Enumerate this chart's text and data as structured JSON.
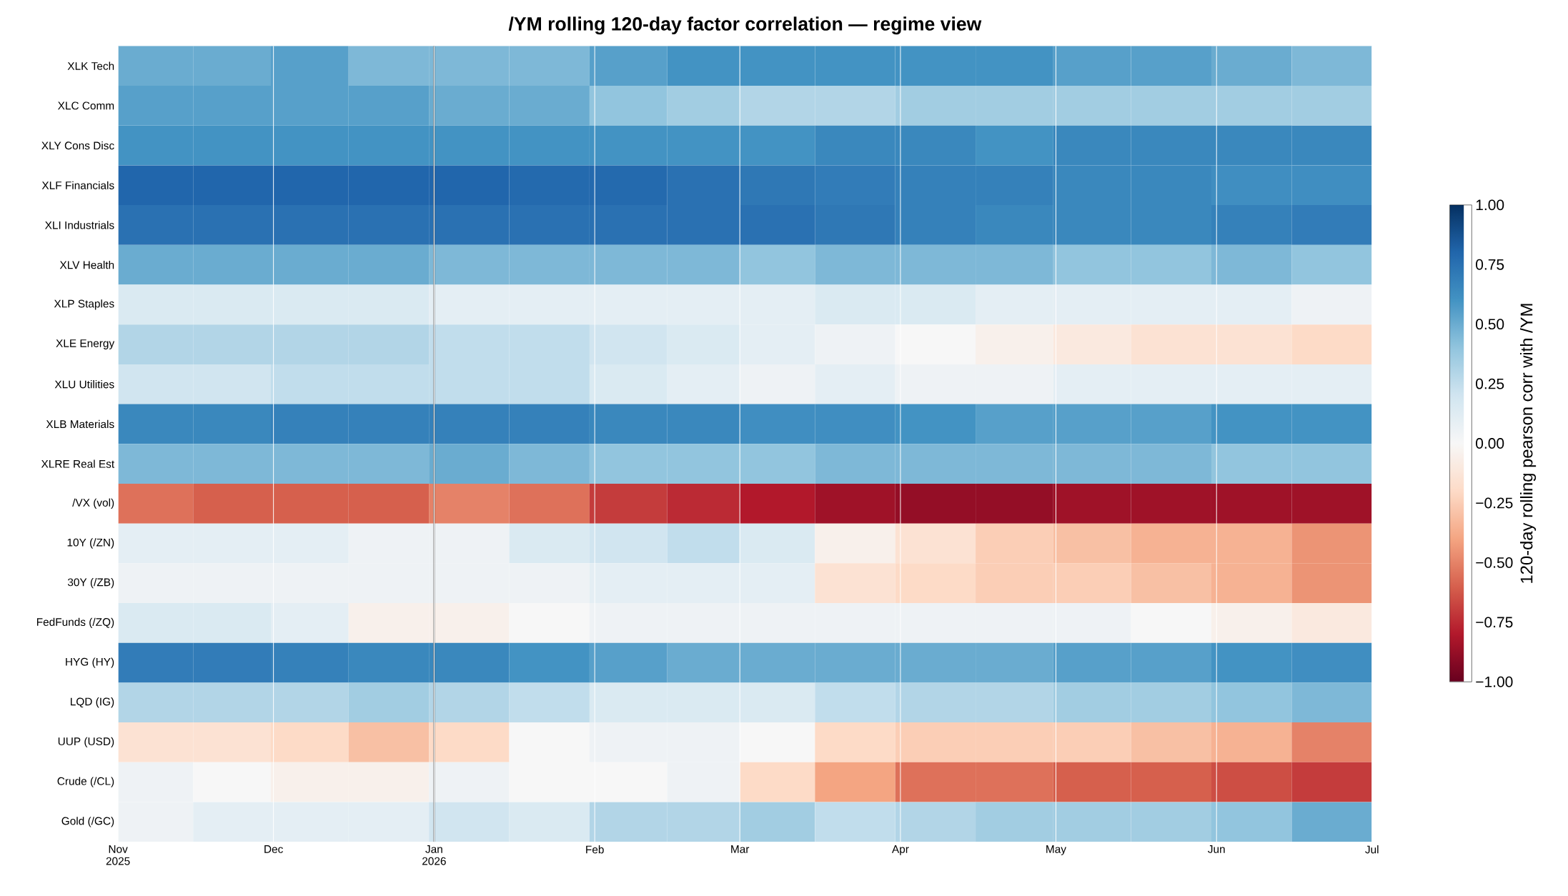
{
  "chart_data": {
    "type": "heatmap",
    "title": "/YM rolling 120-day factor correlation — regime view",
    "clabel": "120-day rolling pearson corr with /YM",
    "x": [
      "2025-11-08",
      "2025-11-23",
      "2025-12-08",
      "2025-12-23",
      "2026-01-08",
      "2026-01-23",
      "2026-02-08",
      "2026-02-22",
      "2026-03-08",
      "2026-03-23",
      "2026-04-08",
      "2026-04-23",
      "2026-05-08",
      "2026-05-23",
      "2026-06-08",
      "2026-06-23"
    ],
    "xlim": [
      "2025-11-01",
      "2026-07-01"
    ],
    "xticks": [
      {
        "value": "2025-11-01",
        "label": "Nov 2025"
      },
      {
        "value": "2025-12-01",
        "label": "Dec"
      },
      {
        "value": "2026-01-01",
        "label": "Jan 2026"
      },
      {
        "value": "2026-02-01",
        "label": "Feb"
      },
      {
        "value": "2026-03-01",
        "label": "Mar"
      },
      {
        "value": "2026-04-01",
        "label": "Apr"
      },
      {
        "value": "2026-05-01",
        "label": "May"
      },
      {
        "value": "2026-06-01",
        "label": "Jun"
      },
      {
        "value": "2026-07-01",
        "label": "Jul"
      }
    ],
    "y_categories": [
      "XLK Tech",
      "XLC Comm",
      "XLY Cons Disc",
      "XLF Financials",
      "XLI Industrials",
      "XLV Health",
      "XLP Staples",
      "XLE Energy",
      "XLU Utilities",
      "XLB Materials",
      "XLRE Real Est",
      "/VX (vol)",
      "10Y (/ZN)",
      "30Y (/ZB)",
      "FedFunds (/ZQ)",
      "HYG (HY)",
      "LQD (IG)",
      "UUP (USD)",
      "Crude (/CL)",
      "Gold (/GC)"
    ],
    "cells": [
      [
        0.5,
        0.5,
        0.55,
        0.45,
        0.45,
        0.45,
        0.55,
        0.6,
        0.6,
        0.6,
        0.6,
        0.6,
        0.55,
        0.55,
        0.5,
        0.45
      ],
      [
        0.55,
        0.55,
        0.55,
        0.55,
        0.5,
        0.5,
        0.4,
        0.35,
        0.3,
        0.3,
        0.35,
        0.35,
        0.35,
        0.35,
        0.35,
        0.35
      ],
      [
        0.6,
        0.6,
        0.6,
        0.6,
        0.6,
        0.6,
        0.6,
        0.6,
        0.6,
        0.65,
        0.65,
        0.6,
        0.65,
        0.65,
        0.65,
        0.65
      ],
      [
        0.8,
        0.8,
        0.8,
        0.8,
        0.8,
        0.78,
        0.78,
        0.75,
        0.72,
        0.7,
        0.68,
        0.68,
        0.65,
        0.65,
        0.62,
        0.62
      ],
      [
        0.75,
        0.75,
        0.75,
        0.75,
        0.75,
        0.75,
        0.75,
        0.75,
        0.75,
        0.72,
        0.68,
        0.65,
        0.65,
        0.65,
        0.68,
        0.7
      ],
      [
        0.5,
        0.5,
        0.5,
        0.5,
        0.45,
        0.45,
        0.45,
        0.45,
        0.4,
        0.45,
        0.45,
        0.45,
        0.4,
        0.4,
        0.45,
        0.4
      ],
      [
        0.15,
        0.15,
        0.15,
        0.15,
        0.1,
        0.1,
        0.1,
        0.1,
        0.1,
        0.15,
        0.15,
        0.1,
        0.1,
        0.1,
        0.1,
        0.05
      ],
      [
        0.3,
        0.3,
        0.3,
        0.3,
        0.25,
        0.25,
        0.2,
        0.15,
        0.1,
        0.05,
        0,
        -0.05,
        -0.1,
        -0.15,
        -0.15,
        -0.2
      ],
      [
        0.2,
        0.2,
        0.25,
        0.25,
        0.25,
        0.25,
        0.15,
        0.1,
        0.05,
        0.1,
        0.05,
        0.05,
        0.1,
        0.1,
        0.1,
        0.1
      ],
      [
        0.65,
        0.65,
        0.68,
        0.68,
        0.68,
        0.68,
        0.65,
        0.65,
        0.62,
        0.62,
        0.6,
        0.55,
        0.55,
        0.55,
        0.6,
        0.6
      ],
      [
        0.45,
        0.45,
        0.45,
        0.45,
        0.5,
        0.45,
        0.4,
        0.4,
        0.4,
        0.45,
        0.45,
        0.45,
        0.45,
        0.45,
        0.4,
        0.4
      ],
      [
        -0.55,
        -0.6,
        -0.6,
        -0.6,
        -0.5,
        -0.55,
        -0.7,
        -0.75,
        -0.8,
        -0.85,
        -0.88,
        -0.88,
        -0.85,
        -0.85,
        -0.85,
        -0.85
      ],
      [
        0.1,
        0.1,
        0.1,
        0.05,
        0.05,
        0.15,
        0.2,
        0.25,
        0.15,
        -0.05,
        -0.15,
        -0.25,
        -0.3,
        -0.35,
        -0.35,
        -0.45
      ],
      [
        0.05,
        0.05,
        0.05,
        0.05,
        0.05,
        0.05,
        0.1,
        0.1,
        0.1,
        -0.15,
        -0.2,
        -0.25,
        -0.25,
        -0.3,
        -0.35,
        -0.45
      ],
      [
        0.15,
        0.15,
        0.1,
        -0.05,
        -0.05,
        0,
        0.05,
        0.05,
        0.05,
        0.05,
        0.05,
        0.05,
        0.05,
        0,
        -0.05,
        -0.1
      ],
      [
        0.7,
        0.7,
        0.68,
        0.65,
        0.65,
        0.6,
        0.55,
        0.5,
        0.5,
        0.5,
        0.5,
        0.5,
        0.55,
        0.55,
        0.6,
        0.62
      ],
      [
        0.3,
        0.3,
        0.3,
        0.35,
        0.3,
        0.25,
        0.15,
        0.15,
        0.15,
        0.25,
        0.3,
        0.3,
        0.35,
        0.35,
        0.4,
        0.45
      ],
      [
        -0.15,
        -0.15,
        -0.2,
        -0.3,
        -0.2,
        0,
        0.05,
        0.05,
        0,
        -0.2,
        -0.25,
        -0.25,
        -0.25,
        -0.3,
        -0.35,
        -0.5
      ],
      [
        0.05,
        0,
        -0.05,
        -0.05,
        0.05,
        0,
        0,
        0.05,
        -0.2,
        -0.4,
        -0.55,
        -0.55,
        -0.6,
        -0.6,
        -0.65,
        -0.7
      ],
      [
        0.05,
        0.1,
        0.1,
        0.1,
        0.2,
        0.15,
        0.3,
        0.3,
        0.35,
        0.25,
        0.3,
        0.35,
        0.35,
        0.35,
        0.4,
        0.5
      ]
    ],
    "clim": [
      -1,
      1
    ],
    "cticks": [
      {
        "value": -1,
        "label": "−1.00"
      },
      {
        "value": -0.75,
        "label": "−0.75"
      },
      {
        "value": -0.5,
        "label": "−0.50"
      },
      {
        "value": -0.25,
        "label": "−0.25"
      },
      {
        "value": 0,
        "label": "0.00"
      },
      {
        "value": 0.25,
        "label": "0.25"
      },
      {
        "value": 0.5,
        "label": "0.50"
      },
      {
        "value": 0.75,
        "label": "0.75"
      },
      {
        "value": 1,
        "label": "1.00"
      }
    ],
    "grid": "x",
    "ref_lines": [
      {
        "axis": "x",
        "value": "2026-01-01",
        "color": "#555555"
      }
    ]
  }
}
